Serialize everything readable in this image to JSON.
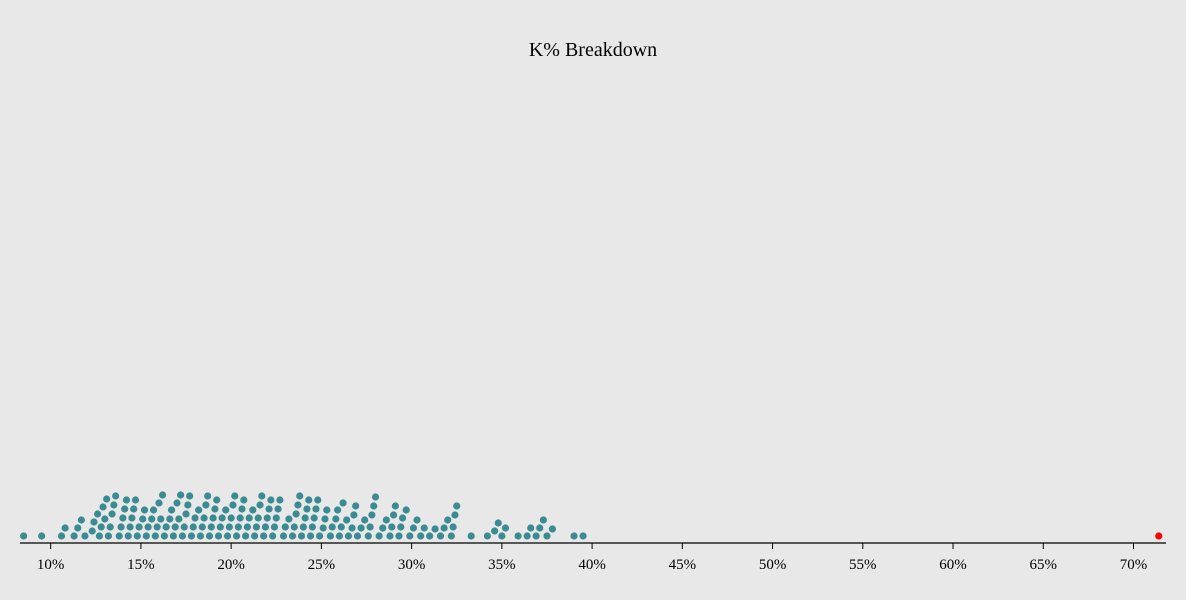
{
  "chart_data": {
    "type": "scatter",
    "subtype": "beeswarm",
    "title": "K% Breakdown",
    "xlabel": "",
    "ylabel": "",
    "xlim": [
      8.3,
      71.8
    ],
    "x_ticks": [
      10,
      15,
      20,
      25,
      30,
      35,
      40,
      45,
      50,
      55,
      60,
      65,
      70
    ],
    "x_tick_format": "percent",
    "grid": false,
    "colors": {
      "background": "#e8e8e8",
      "dot": "#3a8b92",
      "highlight": "#ff0000",
      "axis": "#000000"
    },
    "series": [
      {
        "color": "#3a8b92",
        "values": [
          8.5,
          9.5,
          10.6,
          10.8,
          11.3,
          11.5,
          11.7,
          11.9,
          12.3,
          12.4,
          12.6,
          12.7,
          12.8,
          12.9,
          13.0,
          13.1,
          13.2,
          13.3,
          13.4,
          13.5,
          13.6,
          13.8,
          13.9,
          14.0,
          14.1,
          14.2,
          14.3,
          14.4,
          14.5,
          14.6,
          14.7,
          14.8,
          14.9,
          15.1,
          15.2,
          15.3,
          15.4,
          15.6,
          15.7,
          15.8,
          15.9,
          16.0,
          16.1,
          16.2,
          16.3,
          16.4,
          16.6,
          16.7,
          16.8,
          16.9,
          17.0,
          17.1,
          17.2,
          17.3,
          17.4,
          17.5,
          17.6,
          17.7,
          17.8,
          17.9,
          18.0,
          18.2,
          18.3,
          18.4,
          18.5,
          18.6,
          18.7,
          18.8,
          18.9,
          19.0,
          19.1,
          19.2,
          19.3,
          19.4,
          19.5,
          19.7,
          19.8,
          19.9,
          20.0,
          20.1,
          20.2,
          20.3,
          20.4,
          20.5,
          20.6,
          20.7,
          20.8,
          20.9,
          21.0,
          21.2,
          21.3,
          21.4,
          21.5,
          21.6,
          21.7,
          21.8,
          21.9,
          22.0,
          22.1,
          22.2,
          22.3,
          22.4,
          22.5,
          22.6,
          22.7,
          22.9,
          23.0,
          23.2,
          23.4,
          23.5,
          23.6,
          23.7,
          23.8,
          23.9,
          24.0,
          24.1,
          24.2,
          24.3,
          24.4,
          24.5,
          24.6,
          24.7,
          24.8,
          24.9,
          25.1,
          25.2,
          25.3,
          25.5,
          25.6,
          25.8,
          25.9,
          26.0,
          26.1,
          26.2,
          26.4,
          26.5,
          26.7,
          26.8,
          26.9,
          27.0,
          27.2,
          27.4,
          27.6,
          27.7,
          27.8,
          27.9,
          28.0,
          28.2,
          28.4,
          28.6,
          28.8,
          28.9,
          29.0,
          29.1,
          29.3,
          29.4,
          29.5,
          29.7,
          29.9,
          30.1,
          30.3,
          30.5,
          30.7,
          31.0,
          31.3,
          31.6,
          31.8,
          32.0,
          32.2,
          32.3,
          32.4,
          32.5,
          33.3,
          34.2,
          34.6,
          34.8,
          35.0,
          35.2,
          35.9,
          36.4,
          36.6,
          36.9,
          37.1,
          37.3,
          37.5,
          37.8,
          39.0,
          39.5
        ]
      },
      {
        "color": "#ff0000",
        "values": [
          71.4
        ]
      }
    ]
  }
}
